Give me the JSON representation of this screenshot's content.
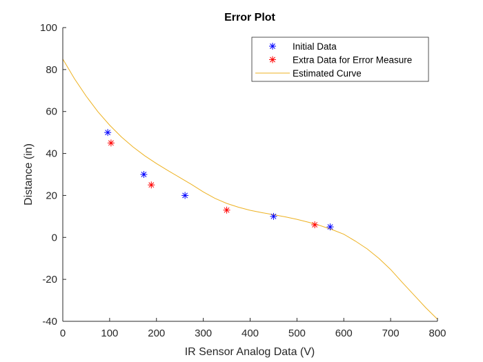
{
  "chart_data": {
    "type": "scatter",
    "title": "Error Plot",
    "xlabel": "IR Sensor Analog Data (V)",
    "ylabel": "Distance (in)",
    "xlim": [
      0,
      800
    ],
    "ylim": [
      -40,
      100
    ],
    "xticks": [
      0,
      100,
      200,
      300,
      400,
      500,
      600,
      700,
      800
    ],
    "yticks": [
      -40,
      -20,
      0,
      20,
      40,
      60,
      80,
      100
    ],
    "xtick_labels": [
      "0",
      "100",
      "200",
      "300",
      "400",
      "500",
      "600",
      "700",
      "800"
    ],
    "ytick_labels": [
      "-40",
      "-20",
      "0",
      "20",
      "40",
      "60",
      "80",
      "100"
    ],
    "grid": false,
    "legend_position": "top-right",
    "series": [
      {
        "name": "Initial Data",
        "kind": "marker",
        "marker": "asterisk",
        "color": "#0000ff",
        "x": [
          96,
          173,
          261,
          450,
          571
        ],
        "y": [
          50,
          30,
          20,
          10,
          5
        ]
      },
      {
        "name": "Extra Data for Error Measure",
        "kind": "marker",
        "marker": "asterisk",
        "color": "#ff0000",
        "x": [
          103,
          189,
          350,
          538
        ],
        "y": [
          45,
          25,
          13,
          6
        ]
      },
      {
        "name": "Estimated Curve",
        "kind": "line",
        "color": "#edb120",
        "x": [
          0,
          25,
          50,
          75,
          100,
          125,
          150,
          175,
          200,
          225,
          250,
          275,
          300,
          325,
          350,
          375,
          400,
          425,
          450,
          475,
          500,
          525,
          550,
          575,
          600,
          625,
          650,
          675,
          700,
          725,
          750,
          775,
          800
        ],
        "y": [
          85,
          75.6,
          67.3,
          59.9,
          53.5,
          47.9,
          43.1,
          38.9,
          35.2,
          31.8,
          28.5,
          25.2,
          21.7,
          18.6,
          16.2,
          14.4,
          12.9,
          11.8,
          10.8,
          9.8,
          8.6,
          7.2,
          5.6,
          3.7,
          1.5,
          -1.8,
          -5.5,
          -10,
          -15.3,
          -21.5,
          -27.5,
          -33.5,
          -39
        ]
      }
    ]
  }
}
